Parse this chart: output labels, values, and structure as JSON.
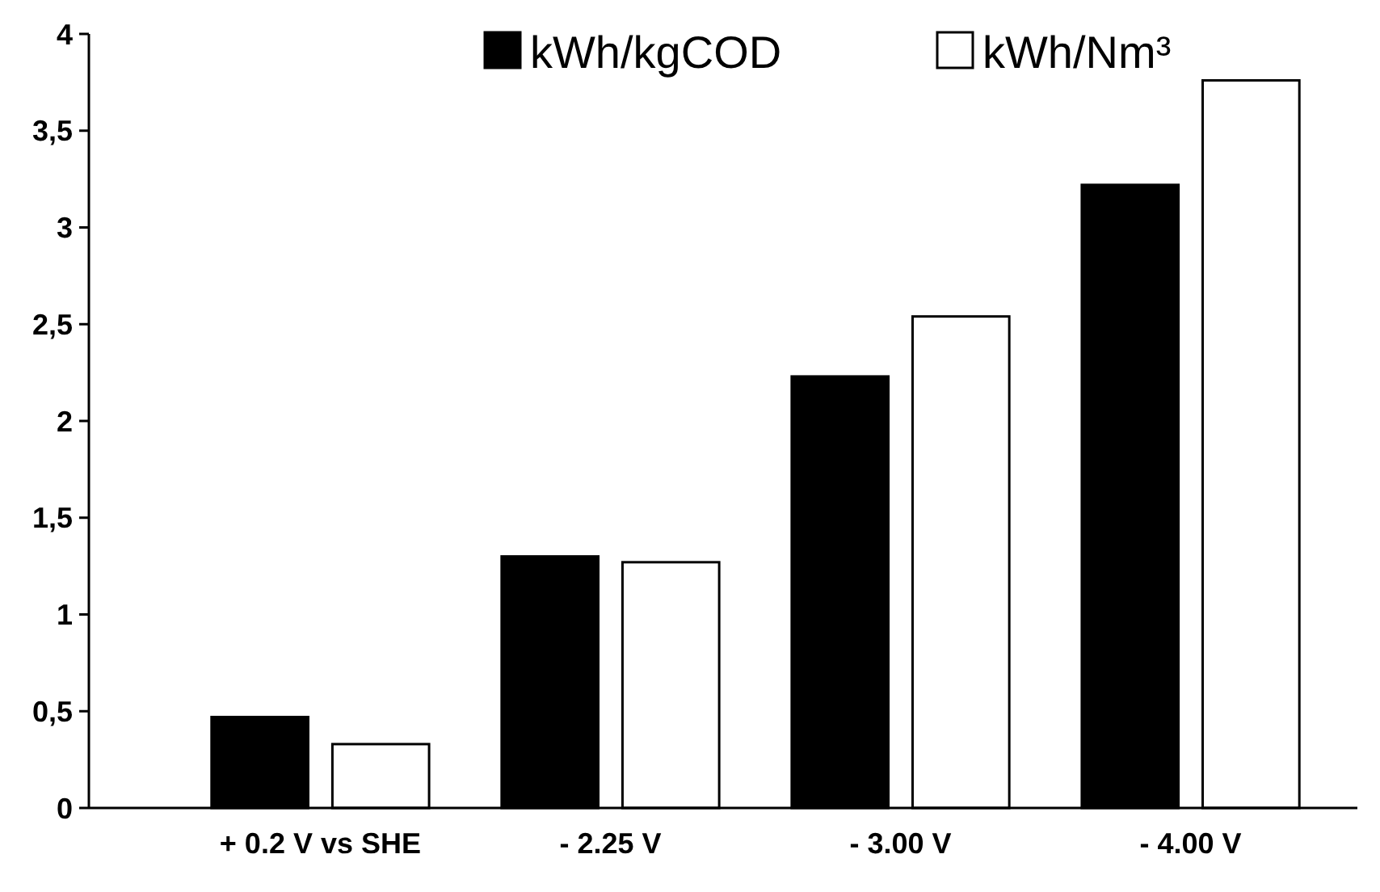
{
  "chart_data": {
    "type": "bar",
    "categories": [
      "+ 0.2 V vs SHE",
      "- 2.25 V",
      "- 3.00 V",
      "- 4.00 V"
    ],
    "series": [
      {
        "name": "kWh/kgCOD",
        "color": "#000000",
        "values": [
          0.47,
          1.3,
          2.23,
          3.22
        ]
      },
      {
        "name": "kWh/Nm³",
        "color": "#ffffff",
        "values": [
          0.33,
          1.27,
          2.54,
          3.76
        ]
      }
    ],
    "ylim": [
      0,
      4
    ],
    "yticks": [
      0,
      {
        "value": 0.5,
        "label": "0,5"
      },
      1,
      {
        "value": 1.5,
        "label": "1,5"
      },
      2,
      {
        "value": 2.5,
        "label": "2,5"
      },
      3,
      {
        "value": 3.5,
        "label": "3,5"
      },
      4
    ],
    "legend": "top",
    "grid": false
  }
}
